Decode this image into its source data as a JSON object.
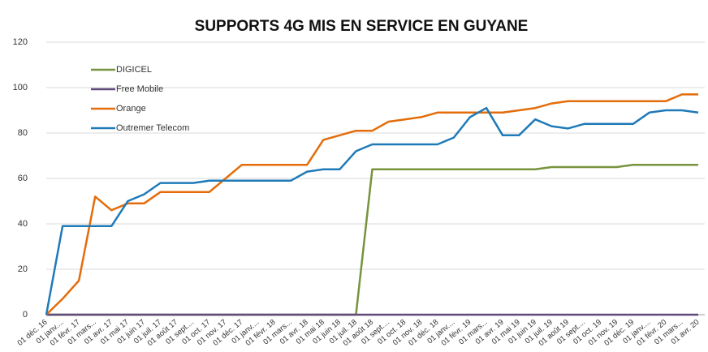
{
  "chart_data": {
    "type": "line",
    "title": "SUPPORTS 4G MIS EN SERVICE  EN GUYANE",
    "categories": [
      "01 déc. 16",
      "01 janv....",
      "01 févr. 17",
      "01 mars...",
      "01 avr. 17",
      "01 mai 17",
      "01 juin 17",
      "01 juil. 17",
      "01 août 17",
      "01 sept....",
      "01 oct. 17",
      "01 nov. 17",
      "01 déc. 17",
      "01 janv....",
      "01 févr. 18",
      "01 mars...",
      "01 avr. 18",
      "01 mai 18",
      "01 juin 18",
      "01 juil. 18",
      "01 août 18",
      "01 sept....",
      "01 oct. 18",
      "01 nov. 18",
      "01 déc. 18",
      "01 janv....",
      "01 févr. 19",
      "01 mars...",
      "01 avr. 19",
      "01 mai 19",
      "01 juin 19",
      "01 juil. 19",
      "01 août 19",
      "01 sept....",
      "01 oct. 19",
      "01 nov. 19",
      "01 déc. 19",
      "01 janv....",
      "01 févr. 20",
      "01 mars...",
      "01 avr. 20"
    ],
    "series": [
      {
        "name": "DIGICEL",
        "color": "#77933c",
        "values": [
          0,
          0,
          0,
          0,
          0,
          0,
          0,
          0,
          0,
          0,
          0,
          0,
          0,
          0,
          0,
          0,
          0,
          0,
          0,
          0,
          64,
          64,
          64,
          64,
          64,
          64,
          64,
          64,
          64,
          64,
          64,
          65,
          65,
          65,
          65,
          65,
          66,
          66,
          66,
          66,
          66
        ]
      },
      {
        "name": "Free Mobile",
        "color": "#604a7b",
        "values": [
          0,
          0,
          0,
          0,
          0,
          0,
          0,
          0,
          0,
          0,
          0,
          0,
          0,
          0,
          0,
          0,
          0,
          0,
          0,
          0,
          0,
          0,
          0,
          0,
          0,
          0,
          0,
          0,
          0,
          0,
          0,
          0,
          0,
          0,
          0,
          0,
          0,
          0,
          0,
          0,
          0
        ]
      },
      {
        "name": "Orange",
        "color": "#e46c0a",
        "values": [
          0,
          7,
          15,
          52,
          46,
          49,
          49,
          54,
          54,
          54,
          54,
          60,
          66,
          66,
          66,
          66,
          66,
          77,
          79,
          81,
          81,
          85,
          86,
          87,
          89,
          89,
          89,
          89,
          89,
          90,
          91,
          93,
          94,
          94,
          94,
          94,
          94,
          94,
          94,
          97,
          97
        ]
      },
      {
        "name": "Outremer Telecom",
        "color": "#1f7ab8",
        "values": [
          0,
          39,
          39,
          39,
          39,
          50,
          53,
          58,
          58,
          58,
          59,
          59,
          59,
          59,
          59,
          59,
          63,
          64,
          64,
          72,
          75,
          75,
          75,
          75,
          75,
          78,
          87,
          91,
          79,
          79,
          86,
          83,
          82,
          84,
          84,
          84,
          84,
          89,
          90,
          90,
          89
        ]
      }
    ],
    "ylim": [
      0,
      120
    ],
    "yticks": [
      0,
      20,
      40,
      60,
      80,
      100,
      120
    ],
    "grid": true,
    "legend": "top-left"
  }
}
